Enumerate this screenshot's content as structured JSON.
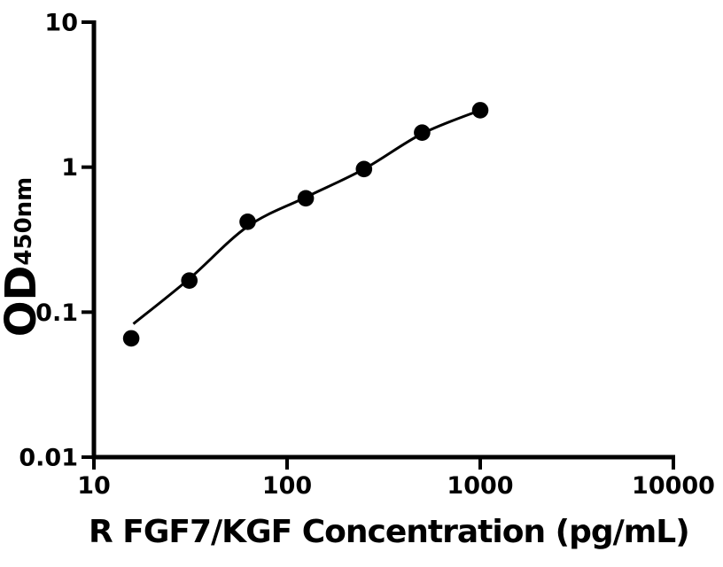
{
  "figure": {
    "background": "#ffffff",
    "ink_color": "#000000"
  },
  "chart_data": {
    "type": "scatter",
    "title": "",
    "xlabel": "R FGF7/KGF Concentration (pg/mL)",
    "ylabel_main": "OD",
    "ylabel_sub": "450nm",
    "x_scale": "log",
    "y_scale": "log",
    "xlim": [
      10,
      10000
    ],
    "ylim": [
      0.01,
      10
    ],
    "x_ticks": [
      10,
      100,
      1000,
      10000
    ],
    "x_tick_labels": [
      "10",
      "100",
      "1000",
      "10000"
    ],
    "y_ticks": [
      10,
      1,
      0.1,
      0.01
    ],
    "y_tick_labels": [
      "10",
      "1",
      "0.1",
      "0.01"
    ],
    "grid": false,
    "legend": "none",
    "marker_color": "#000000",
    "line_color": "#000000",
    "series": [
      {
        "name": "standard curve data points",
        "marker": "filled-circle",
        "x": [
          15.6,
          31.2,
          62.5,
          125,
          250,
          500,
          1000
        ],
        "y": [
          0.066,
          0.165,
          0.42,
          0.61,
          0.97,
          1.73,
          2.47
        ]
      }
    ],
    "fit_curve": {
      "name": "fitted standard curve",
      "points": [
        [
          16,
          0.083
        ],
        [
          31.2,
          0.17
        ],
        [
          62.5,
          0.39
        ],
        [
          125,
          0.62
        ],
        [
          250,
          0.97
        ],
        [
          500,
          1.7
        ],
        [
          1000,
          2.47
        ]
      ]
    }
  }
}
